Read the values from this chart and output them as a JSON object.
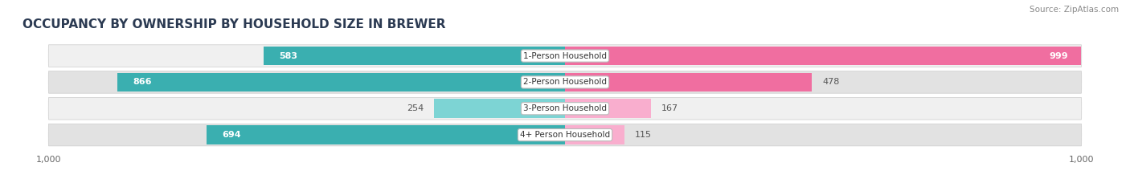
{
  "title": "OCCUPANCY BY OWNERSHIP BY HOUSEHOLD SIZE IN BREWER",
  "source": "Source: ZipAtlas.com",
  "categories": [
    "1-Person Household",
    "2-Person Household",
    "3-Person Household",
    "4+ Person Household"
  ],
  "owner_values": [
    583,
    866,
    254,
    694
  ],
  "renter_values": [
    999,
    478,
    167,
    115
  ],
  "owner_color_dark": "#3AAFB0",
  "owner_color_light": "#7DD4D4",
  "renter_color_dark": "#F06EA0",
  "renter_color_light": "#F9AECE",
  "row_bg_light": "#F0F0F0",
  "row_bg_dark": "#E2E2E2",
  "axis_max": 1000,
  "title_fontsize": 11,
  "bar_height": 0.72,
  "figsize": [
    14.06,
    2.33
  ],
  "dpi": 100
}
